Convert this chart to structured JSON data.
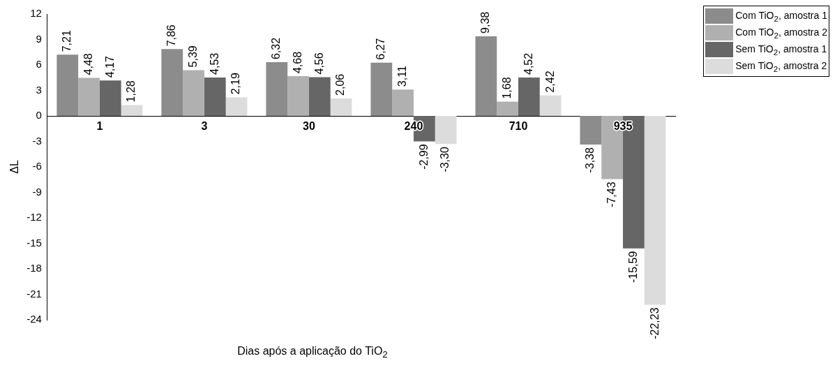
{
  "chart_data": {
    "type": "bar",
    "xlabel": "Dias após a aplicação do TiO$_{2}$",
    "ylabel": "ΔL",
    "categories": [
      "1",
      "3",
      "30",
      "240",
      "710",
      "935"
    ],
    "ylim": [
      -24,
      12
    ],
    "yticks": [
      -24,
      -21,
      -18,
      -15,
      -12,
      -9,
      -6,
      -3,
      0,
      3,
      6,
      9,
      12
    ],
    "grid": false,
    "legend": "top right",
    "series": [
      {
        "name": "Com TiO$_{2}$, amostra 1",
        "color": "#8c8c8c",
        "values": [
          7.21,
          7.86,
          6.32,
          6.27,
          9.38,
          -3.38
        ],
        "value_labels": [
          "7,21",
          "7,86",
          "6,32",
          "6,27",
          "9,38",
          "-3,38"
        ]
      },
      {
        "name": "Com TiO$_{2}$, amostra 2",
        "color": "#b0b0b0",
        "values": [
          4.48,
          5.39,
          4.68,
          3.11,
          1.68,
          -7.43
        ],
        "value_labels": [
          "4,48",
          "5,39",
          "4,68",
          "3,11",
          "1,68",
          "-7,43"
        ]
      },
      {
        "name": "Sem TiO$_{2}$, amostra 1",
        "color": "#666666",
        "values": [
          4.17,
          4.53,
          4.56,
          -2.99,
          4.52,
          -15.59
        ],
        "value_labels": [
          "4,17",
          "4,53",
          "4,56",
          "-2,99",
          "4,52",
          "-15,59"
        ]
      },
      {
        "name": "Sem TiO$_{2}$, amostra 2",
        "color": "#dcdcdc",
        "values": [
          1.28,
          2.19,
          2.06,
          -3.3,
          2.42,
          -22.23
        ],
        "value_labels": [
          "1,28",
          "2,19",
          "2,06",
          "-3,30",
          "2,42",
          "-22,23"
        ]
      }
    ]
  }
}
